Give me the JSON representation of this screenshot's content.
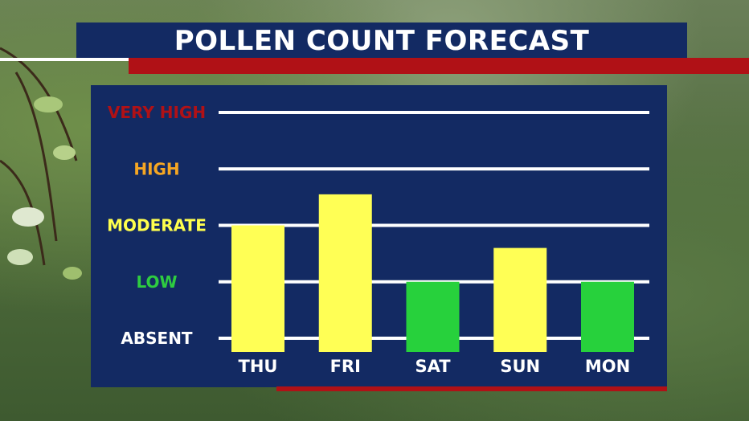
{
  "title": "POLLEN COUNT FORECAST",
  "chart_data": {
    "type": "bar",
    "title": "POLLEN COUNT FORECAST",
    "categories": [
      "THU",
      "FRI",
      "SAT",
      "SUN",
      "MON"
    ],
    "levels": [
      {
        "label": "ABSENT",
        "value": 0,
        "color": "#ffffff"
      },
      {
        "label": "LOW",
        "value": 1,
        "color": "#2ecc40"
      },
      {
        "label": "MODERATE",
        "value": 2,
        "color": "#ffff4d"
      },
      {
        "label": "HIGH",
        "value": 3,
        "color": "#f5a623"
      },
      {
        "label": "VERY HIGH",
        "value": 4,
        "color": "#b01116"
      }
    ],
    "values": [
      2.0,
      2.55,
      1.0,
      1.6,
      1.0
    ],
    "bar_colors": [
      "#ffff55",
      "#ffff55",
      "#27d13c",
      "#ffff55",
      "#27d13c"
    ],
    "ylim": [
      0,
      4
    ],
    "grid": true
  }
}
